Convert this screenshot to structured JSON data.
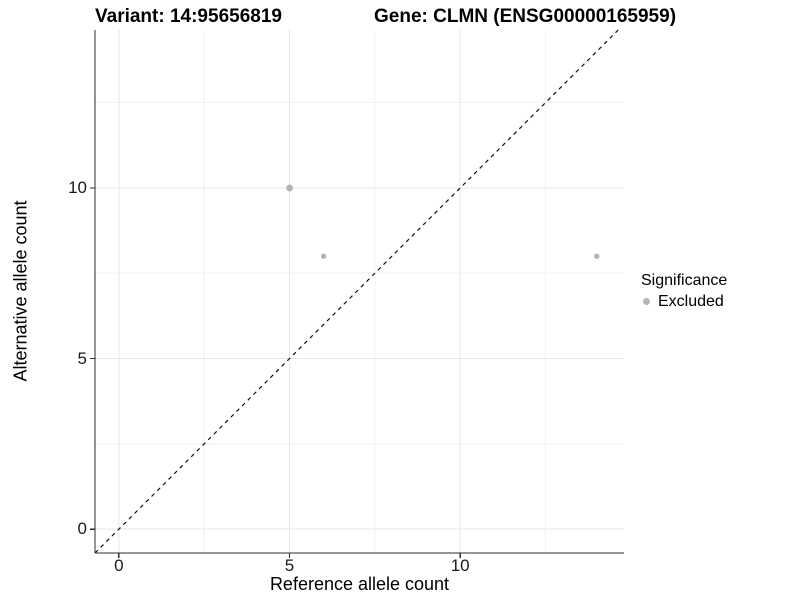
{
  "header": {
    "variant_title": "Variant: 14:95656819",
    "gene_title": "Gene: CLMN (ENSG00000165959)"
  },
  "chart_data": {
    "type": "scatter",
    "titles": [
      "Variant: 14:95656819",
      "Gene: CLMN (ENSG00000165959)"
    ],
    "xlabel": "Reference allele count",
    "ylabel": "Alternative allele count",
    "xlim": [
      -0.7,
      14.8
    ],
    "ylim": [
      -0.7,
      14.63
    ],
    "x_ticks": [
      0,
      5,
      10
    ],
    "x_tick_labels": [
      "0",
      "5",
      "10"
    ],
    "y_ticks": [
      0,
      5,
      10
    ],
    "y_tick_labels": [
      "0",
      "5",
      "10"
    ],
    "x_minor_gridlines": [
      2.5,
      7.5,
      12.5
    ],
    "y_minor_gridlines": [
      2.5,
      7.5,
      12.5
    ],
    "grid": "major+minor",
    "points": [
      {
        "x": 5,
        "y": 10,
        "r": 3.4,
        "series": "Excluded"
      },
      {
        "x": 6,
        "y": 8,
        "r": 2.7,
        "series": "Excluded"
      },
      {
        "x": 14,
        "y": 8,
        "r": 2.7,
        "series": "Excluded"
      }
    ],
    "reference_line": {
      "type": "identity",
      "slope": 1,
      "intercept": 0,
      "style": "dashed"
    },
    "legend": {
      "title": "Significance",
      "position": "right",
      "items": [
        {
          "label": "Excluded",
          "color": "#b4b4b4",
          "marker": "circle"
        }
      ]
    }
  },
  "colors": {
    "background": "#ffffff",
    "point": "#b4b4b4",
    "grid_major": "#e7e7e7",
    "grid_minor": "#f2f2f2",
    "axis_line": "#2e2e2e",
    "tick_mark": "#2e2e2e",
    "dashed_line": "#111111",
    "text": "#000000"
  }
}
